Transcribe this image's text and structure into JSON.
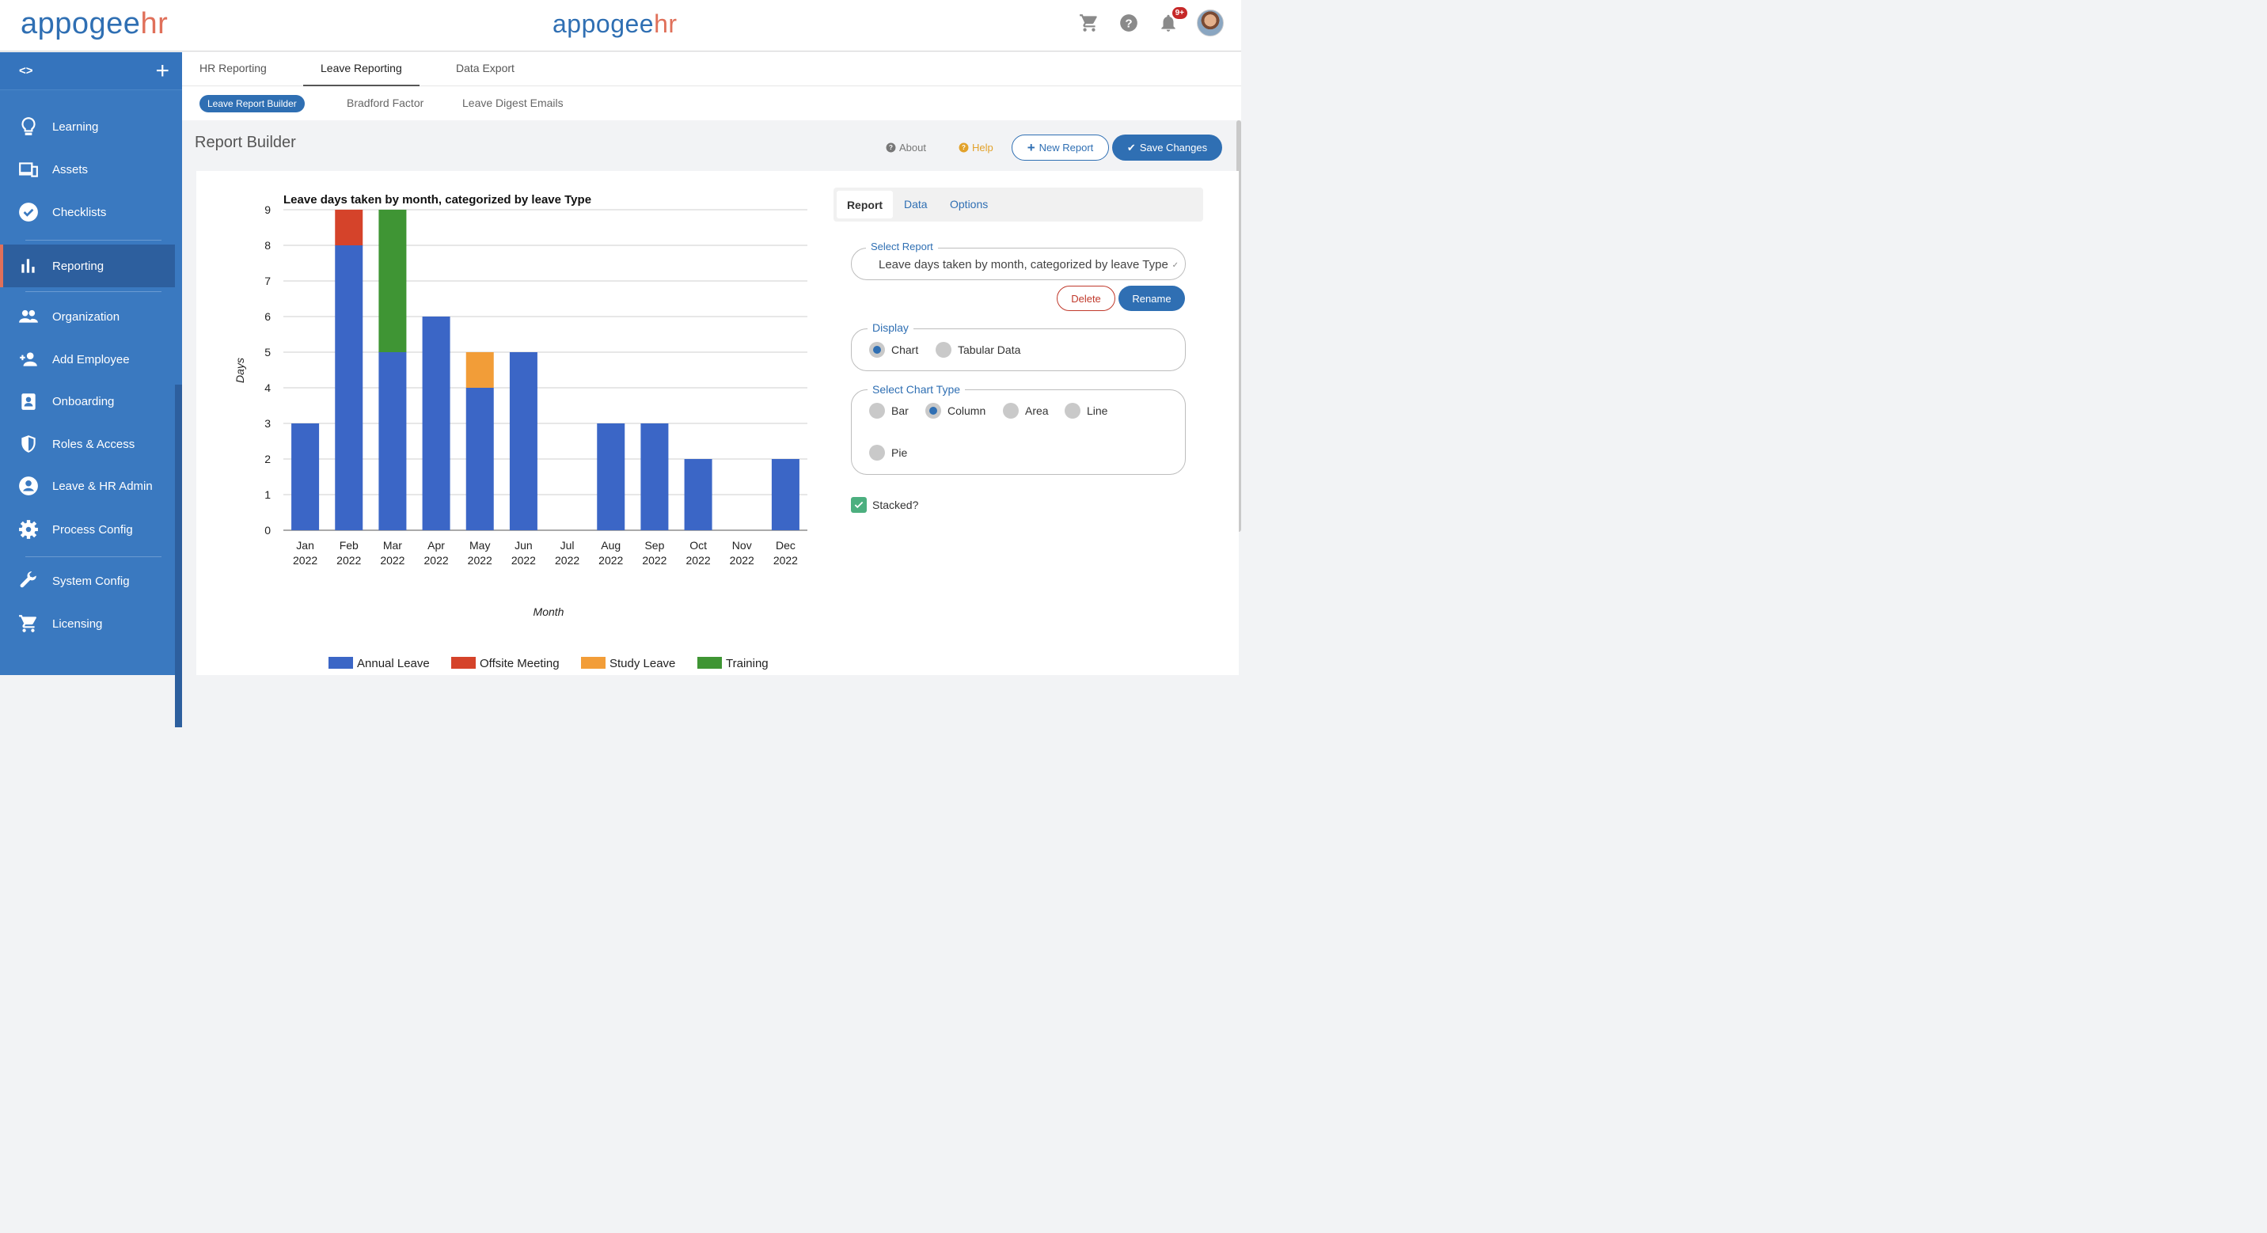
{
  "brand": {
    "part1": "appogee",
    "part2": "hr"
  },
  "header": {
    "notification_count": "9+"
  },
  "sidebar": {
    "toggle": "<>",
    "items": [
      {
        "label": "Learning",
        "icon": "lightbulb-icon"
      },
      {
        "label": "Assets",
        "icon": "devices-icon"
      },
      {
        "label": "Checklists",
        "icon": "check-circle-icon"
      },
      {
        "label": "Reporting",
        "icon": "bar-chart-icon",
        "active": true
      },
      {
        "label": "Organization",
        "icon": "people-icon"
      },
      {
        "label": "Add Employee",
        "icon": "person-add-icon"
      },
      {
        "label": "Onboarding",
        "icon": "badge-icon"
      },
      {
        "label": "Roles & Access",
        "icon": "shield-icon"
      },
      {
        "label": "Leave & HR Admin",
        "icon": "account-circle-icon"
      },
      {
        "label": "Process Config",
        "icon": "gear-icon"
      },
      {
        "label": "System Config",
        "icon": "wrench-icon"
      },
      {
        "label": "Licensing",
        "icon": "cart-icon"
      }
    ]
  },
  "tabs": [
    "HR Reporting",
    "Leave Reporting",
    "Data Export"
  ],
  "subtabs": [
    "Leave Report Builder",
    "Bradford Factor",
    "Leave Digest Emails"
  ],
  "page": {
    "title": "Report Builder",
    "about": "About",
    "help": "Help",
    "new_report": "New Report",
    "save_changes": "Save Changes"
  },
  "panel": {
    "tabs": [
      "Report",
      "Data",
      "Options"
    ],
    "select_report_label": "Select Report",
    "select_report_value": "Leave days taken by month, categorized by leave Type",
    "delete": "Delete",
    "rename": "Rename",
    "display_label": "Display",
    "display_options": [
      "Chart",
      "Tabular Data"
    ],
    "display_selected": "Chart",
    "chart_type_label": "Select Chart Type",
    "chart_types": [
      "Bar",
      "Column",
      "Area",
      "Line",
      "Pie"
    ],
    "chart_type_selected": "Column",
    "stacked_label": "Stacked?",
    "stacked": true
  },
  "colors": {
    "brand_blue": "#2f6fb3",
    "brand_orange": "#e0705a"
  },
  "chart_data": {
    "type": "bar",
    "stacked": true,
    "title": "Leave days taken by month, categorized by leave Type",
    "xlabel": "Month",
    "ylabel": "Days",
    "ylim": [
      0,
      9
    ],
    "yticks": [
      0,
      1,
      2,
      3,
      4,
      5,
      6,
      7,
      8,
      9
    ],
    "grid": true,
    "legend_position": "bottom",
    "categories": [
      [
        "Jan",
        "2022"
      ],
      [
        "Feb",
        "2022"
      ],
      [
        "Mar",
        "2022"
      ],
      [
        "Apr",
        "2022"
      ],
      [
        "May",
        "2022"
      ],
      [
        "Jun",
        "2022"
      ],
      [
        "Jul",
        "2022"
      ],
      [
        "Aug",
        "2022"
      ],
      [
        "Sep",
        "2022"
      ],
      [
        "Oct",
        "2022"
      ],
      [
        "Nov",
        "2022"
      ],
      [
        "Dec",
        "2022"
      ]
    ],
    "series": [
      {
        "name": "Annual Leave",
        "color": "#3b66c6",
        "values": [
          3,
          8,
          5,
          6,
          4,
          5,
          0,
          3,
          3,
          2,
          0,
          2
        ]
      },
      {
        "name": "Offsite Meeting",
        "color": "#d5432a",
        "values": [
          0,
          1,
          0,
          0,
          0,
          0,
          0,
          0,
          0,
          0,
          0,
          0
        ]
      },
      {
        "name": "Study Leave",
        "color": "#f29d38",
        "values": [
          0,
          0,
          0,
          0,
          1,
          0,
          0,
          0,
          0,
          0,
          0,
          0
        ]
      },
      {
        "name": "Training",
        "color": "#3f9534",
        "values": [
          0,
          0,
          4,
          0,
          0,
          0,
          0,
          0,
          0,
          0,
          0,
          0
        ]
      }
    ]
  }
}
